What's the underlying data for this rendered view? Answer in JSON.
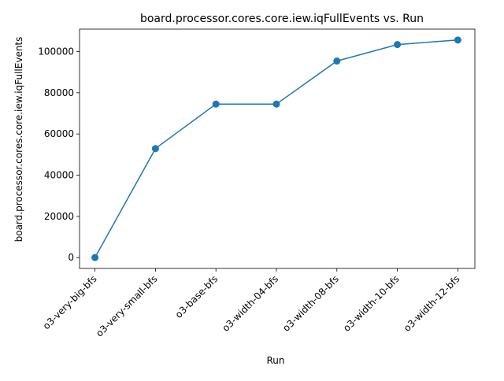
{
  "chart_data": {
    "type": "line",
    "title": "board.processor.cores.core.iew.iqFullEvents vs. Run",
    "xlabel": "Run",
    "ylabel": "board.processor.cores.core.iew.iqFullEvents",
    "categories": [
      "o3-very-big-bfs",
      "o3-very-small-bfs",
      "o3-base-bfs",
      "o3-width-04-bfs",
      "o3-width-08-bfs",
      "o3-width-10-bfs",
      "o3-width-12-bfs"
    ],
    "series": [
      {
        "values": [
          0,
          52900,
          74500,
          74500,
          95400,
          103400,
          105600
        ],
        "color": "#1f77b4",
        "marker": "circle"
      }
    ],
    "ylim": [
      -5280,
      110880
    ],
    "yticks": [
      0,
      20000,
      40000,
      60000,
      80000,
      100000
    ],
    "ytick_labels": [
      "0",
      "20000",
      "40000",
      "60000",
      "80000",
      "100000"
    ],
    "grid": false,
    "legend": "none"
  }
}
